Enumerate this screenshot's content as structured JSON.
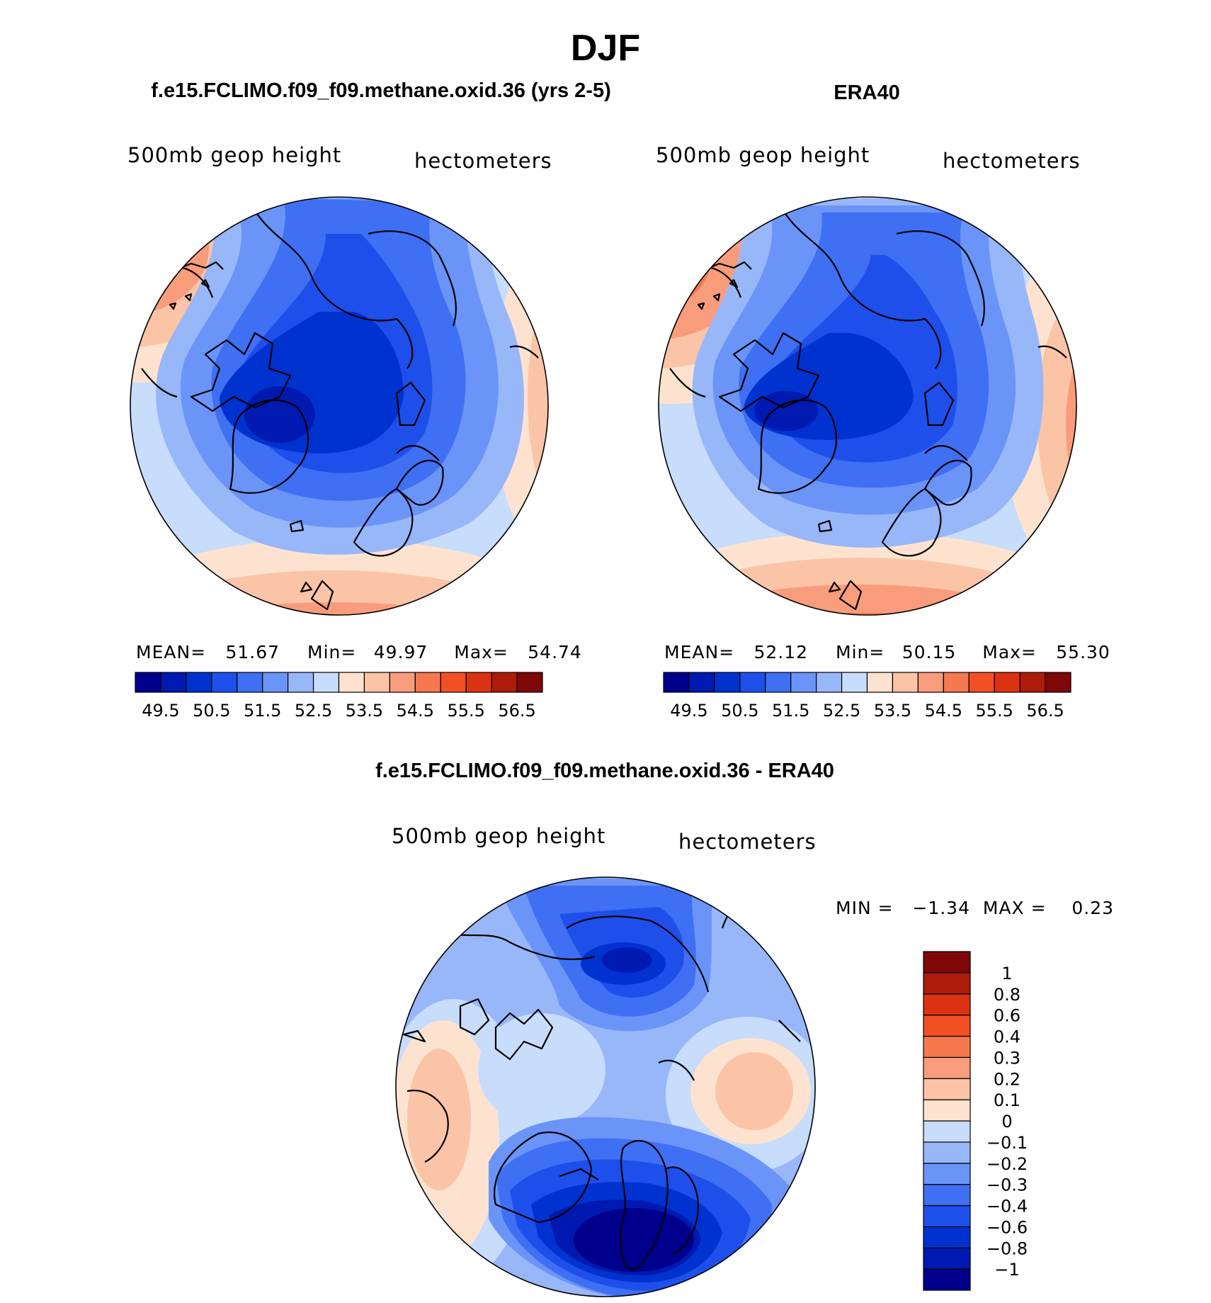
{
  "figure": {
    "season": "DJF",
    "model_title": "f.e15.FCLIMO.f09_f09.methane.oxid.36 (yrs 2-5)",
    "obs_title": "ERA40",
    "diff_title": "f.e15.FCLIMO.f09_f09.methane.oxid.36 - ERA40"
  },
  "panels": {
    "model": {
      "variable": "500mb  geop  height",
      "units": "hectometers",
      "mean_label": "MEAN=",
      "mean": "51.67",
      "min_label": "Min=",
      "min": "49.97",
      "max_label": "Max=",
      "max": "54.74"
    },
    "obs": {
      "variable": "500mb  geop  height",
      "units": "hectometers",
      "mean_label": "MEAN=",
      "mean": "52.12",
      "min_label": "Min=",
      "min": "50.15",
      "max_label": "Max=",
      "max": "55.30"
    },
    "diff": {
      "variable": "500mb  geop  height",
      "units": "hectometers",
      "minmax": "MIN =   −1.34  MAX =    0.23"
    }
  },
  "colorbars": {
    "abs_colors": [
      "#00008c",
      "#0019b0",
      "#0032d0",
      "#1f4fea",
      "#3f6ff2",
      "#6a94f7",
      "#98b7f9",
      "#c8dcfb",
      "#fde3cf",
      "#fbc4a7",
      "#f89c7b",
      "#f5784f",
      "#f24f24",
      "#db3311",
      "#ad1b0a",
      "#7e0707"
    ],
    "abs_ticks": [
      "49.5",
      "50.5",
      "51.5",
      "52.5",
      "53.5",
      "54.5",
      "55.5",
      "56.5"
    ],
    "diff_colors": [
      "#00008c",
      "#0019b0",
      "#0032d0",
      "#1f4fea",
      "#3f6ff2",
      "#6a94f7",
      "#98b7f9",
      "#c8dcfb",
      "#fde3cf",
      "#fbc4a7",
      "#f89c7b",
      "#f5784f",
      "#f24f24",
      "#db3311",
      "#ad1b0a",
      "#7e0707"
    ],
    "diff_ticks": [
      "−1",
      "−0.8",
      "−0.6",
      "−0.4",
      "−0.3",
      "−0.2",
      "−0.1",
      "0",
      "0.1",
      "0.2",
      "0.3",
      "0.4",
      "0.6",
      "0.8",
      "1"
    ]
  }
}
